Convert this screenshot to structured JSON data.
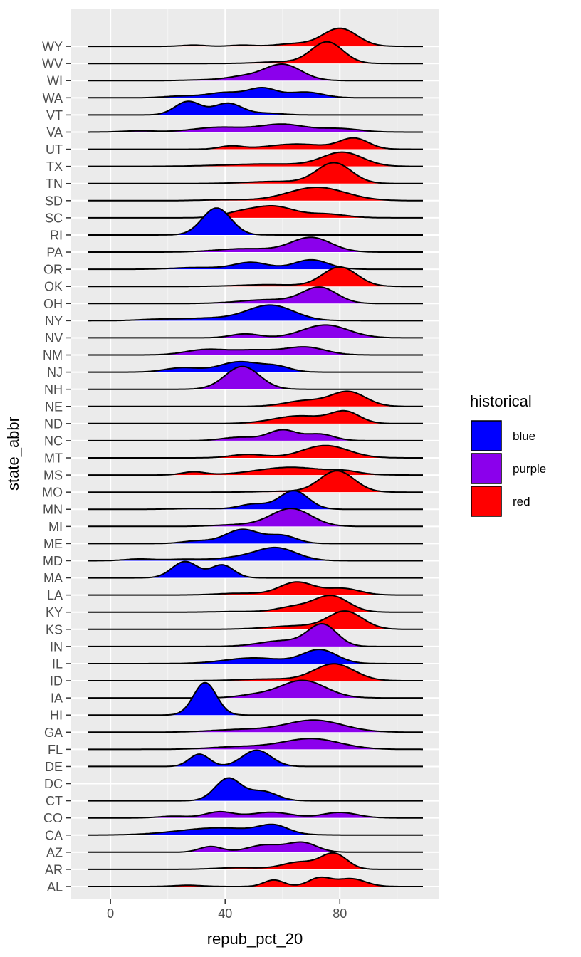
{
  "chart_data": {
    "type": "ridgeline",
    "xlabel": "repub_pct_20",
    "ylabel": "state_abbr",
    "xlim": [
      -13.7,
      114.7
    ],
    "x_ticks": [
      0,
      40,
      80
    ],
    "x_tick_labels": [
      "0",
      "40",
      "80"
    ],
    "grid": true,
    "legend": {
      "title": "historical",
      "position": "right",
      "entries": [
        {
          "label": "blue",
          "color": "#0000FF"
        },
        {
          "label": "purple",
          "color": "#8B00EC"
        },
        {
          "label": "red",
          "color": "#FF0000"
        }
      ]
    },
    "density_note_units": "approximate density components [center repub_pct_20, sd, relative height]",
    "states": [
      {
        "state": "WY",
        "group": "red",
        "components": [
          [
            80,
            6,
            1.05
          ],
          [
            29,
            4,
            0.07
          ],
          [
            46,
            4,
            0.07
          ],
          [
            64,
            6,
            0.15
          ]
        ]
      },
      {
        "state": "WV",
        "group": "red",
        "components": [
          [
            75.6,
            5.5,
            1.25
          ],
          [
            60,
            8,
            0.1
          ]
        ]
      },
      {
        "state": "WI",
        "group": "purple",
        "components": [
          [
            60,
            6.5,
            0.95
          ],
          [
            46,
            6,
            0.22
          ],
          [
            32,
            6,
            0.04
          ]
        ]
      },
      {
        "state": "WA",
        "group": "blue",
        "components": [
          [
            53,
            5,
            0.55
          ],
          [
            40,
            6,
            0.3
          ],
          [
            68,
            6,
            0.33
          ],
          [
            25,
            6,
            0.1
          ]
        ]
      },
      {
        "state": "VT",
        "group": "blue",
        "components": [
          [
            27,
            4.5,
            0.78
          ],
          [
            41,
            5,
            0.68
          ],
          [
            55,
            5,
            0.1
          ]
        ]
      },
      {
        "state": "VA",
        "group": "purple",
        "components": [
          [
            60,
            8,
            0.45
          ],
          [
            38,
            9,
            0.28
          ],
          [
            80,
            7,
            0.2
          ],
          [
            10,
            6,
            0.07
          ]
        ]
      },
      {
        "state": "UT",
        "group": "red",
        "components": [
          [
            85,
            5,
            0.62
          ],
          [
            65,
            10,
            0.3
          ],
          [
            42,
            4,
            0.18
          ]
        ]
      },
      {
        "state": "TX",
        "group": "red",
        "components": [
          [
            81,
            7,
            0.8
          ],
          [
            55,
            15,
            0.14
          ]
        ]
      },
      {
        "state": "TN",
        "group": "red",
        "components": [
          [
            78,
            6,
            1.2
          ],
          [
            58,
            10,
            0.12
          ]
        ]
      },
      {
        "state": "SD",
        "group": "red",
        "components": [
          [
            72,
            10,
            0.78
          ],
          [
            40,
            8,
            0.05
          ]
        ]
      },
      {
        "state": "SC",
        "group": "red",
        "components": [
          [
            57,
            7,
            0.65
          ],
          [
            45,
            6,
            0.28
          ],
          [
            75,
            7,
            0.22
          ]
        ]
      },
      {
        "state": "RI",
        "group": "blue",
        "components": [
          [
            37,
            5,
            1.57
          ]
        ]
      },
      {
        "state": "PA",
        "group": "purple",
        "components": [
          [
            70,
            7,
            0.85
          ],
          [
            47,
            10,
            0.2
          ]
        ]
      },
      {
        "state": "OR",
        "group": "blue",
        "components": [
          [
            49,
            6,
            0.4
          ],
          [
            70,
            6,
            0.55
          ],
          [
            30,
            8,
            0.1
          ]
        ]
      },
      {
        "state": "OK",
        "group": "red",
        "components": [
          [
            80,
            6,
            1.13
          ],
          [
            55,
            10,
            0.1
          ]
        ]
      },
      {
        "state": "OH",
        "group": "purple",
        "components": [
          [
            73,
            6,
            0.92
          ],
          [
            55,
            10,
            0.22
          ]
        ]
      },
      {
        "state": "NY",
        "group": "blue",
        "components": [
          [
            56,
            8,
            0.88
          ],
          [
            35,
            12,
            0.15
          ],
          [
            15,
            6,
            0.05
          ]
        ]
      },
      {
        "state": "NV",
        "group": "purple",
        "components": [
          [
            75,
            8,
            0.75
          ],
          [
            47,
            5,
            0.23
          ]
        ]
      },
      {
        "state": "NM",
        "group": "purple",
        "components": [
          [
            68,
            7,
            0.45
          ],
          [
            33,
            7,
            0.3
          ],
          [
            50,
            8,
            0.28
          ]
        ]
      },
      {
        "state": "NJ",
        "group": "blue",
        "components": [
          [
            45,
            7,
            0.6
          ],
          [
            25,
            6,
            0.25
          ],
          [
            58,
            5,
            0.3
          ]
        ]
      },
      {
        "state": "NH",
        "group": "purple",
        "components": [
          [
            46,
            6,
            1.33
          ]
        ]
      },
      {
        "state": "NE",
        "group": "red",
        "components": [
          [
            83,
            6,
            0.85
          ],
          [
            68,
            7,
            0.33
          ]
        ]
      },
      {
        "state": "ND",
        "group": "red",
        "components": [
          [
            82,
            5,
            0.65
          ],
          [
            66,
            9,
            0.45
          ]
        ]
      },
      {
        "state": "NC",
        "group": "purple",
        "components": [
          [
            60,
            5,
            0.62
          ],
          [
            73,
            5,
            0.38
          ],
          [
            45,
            6,
            0.2
          ]
        ]
      },
      {
        "state": "MT",
        "group": "red",
        "components": [
          [
            75,
            8,
            0.72
          ],
          [
            48,
            6,
            0.2
          ]
        ]
      },
      {
        "state": "MS",
        "group": "red",
        "components": [
          [
            63,
            12,
            0.45
          ],
          [
            29,
            4,
            0.18
          ],
          [
            82,
            5,
            0.15
          ]
        ]
      },
      {
        "state": "MO",
        "group": "red",
        "components": [
          [
            79,
            6,
            1.24
          ],
          [
            60,
            8,
            0.05
          ]
        ]
      },
      {
        "state": "MN",
        "group": "blue",
        "components": [
          [
            64,
            5,
            1.08
          ],
          [
            50,
            5,
            0.3
          ],
          [
            30,
            8,
            0.04
          ]
        ]
      },
      {
        "state": "MI",
        "group": "purple",
        "components": [
          [
            63,
            7,
            1.04
          ],
          [
            45,
            8,
            0.1
          ]
        ]
      },
      {
        "state": "ME",
        "group": "blue",
        "components": [
          [
            46,
            6,
            0.82
          ],
          [
            60,
            5,
            0.45
          ],
          [
            30,
            5,
            0.15
          ]
        ]
      },
      {
        "state": "MD",
        "group": "blue",
        "components": [
          [
            58,
            7,
            0.72
          ],
          [
            45,
            8,
            0.18
          ],
          [
            10,
            5,
            0.1
          ],
          [
            25,
            6,
            0.08
          ]
        ]
      },
      {
        "state": "MA",
        "group": "blue",
        "components": [
          [
            26,
            4.5,
            0.95
          ],
          [
            39,
            4,
            0.75
          ]
        ]
      },
      {
        "state": "LA",
        "group": "red",
        "components": [
          [
            65,
            6,
            0.75
          ],
          [
            81,
            6,
            0.38
          ],
          [
            45,
            8,
            0.1
          ]
        ]
      },
      {
        "state": "KY",
        "group": "red",
        "components": [
          [
            77,
            6,
            0.95
          ],
          [
            64,
            6,
            0.3
          ],
          [
            45,
            8,
            0.04
          ]
        ]
      },
      {
        "state": "KS",
        "group": "red",
        "components": [
          [
            82,
            6,
            1.02
          ],
          [
            65,
            10,
            0.2
          ]
        ]
      },
      {
        "state": "IN",
        "group": "purple",
        "components": [
          [
            74,
            5,
            1.25
          ],
          [
            60,
            8,
            0.33
          ]
        ]
      },
      {
        "state": "IL",
        "group": "blue",
        "components": [
          [
            73,
            6,
            0.8
          ],
          [
            50,
            10,
            0.33
          ]
        ]
      },
      {
        "state": "ID",
        "group": "red",
        "components": [
          [
            78,
            7,
            0.98
          ],
          [
            55,
            10,
            0.1
          ]
        ]
      },
      {
        "state": "IA",
        "group": "purple",
        "components": [
          [
            67,
            8,
            1.02
          ],
          [
            50,
            6,
            0.15
          ]
        ]
      },
      {
        "state": "HI",
        "group": "blue",
        "components": [
          [
            33,
            4,
            1.89
          ]
        ]
      },
      {
        "state": "GA",
        "group": "purple",
        "components": [
          [
            71,
            10,
            0.7
          ],
          [
            45,
            10,
            0.15
          ]
        ]
      },
      {
        "state": "FL",
        "group": "purple",
        "components": [
          [
            70,
            10,
            0.62
          ],
          [
            45,
            10,
            0.15
          ]
        ]
      },
      {
        "state": "DE",
        "group": "blue",
        "components": [
          [
            31,
            3.5,
            0.72
          ],
          [
            51,
            5,
            0.95
          ]
        ]
      },
      {
        "state": "DC",
        "group": "blue",
        "components": []
      },
      {
        "state": "CT",
        "group": "blue",
        "components": [
          [
            41,
            4.5,
            1.3
          ],
          [
            53,
            5,
            0.55
          ]
        ]
      },
      {
        "state": "CO",
        "group": "purple",
        "components": [
          [
            38,
            5,
            0.35
          ],
          [
            56,
            7,
            0.33
          ],
          [
            80,
            6,
            0.32
          ],
          [
            22,
            5,
            0.1
          ]
        ]
      },
      {
        "state": "CA",
        "group": "blue",
        "components": [
          [
            57,
            5,
            0.45
          ],
          [
            38,
            14,
            0.42
          ]
        ]
      },
      {
        "state": "AZ",
        "group": "purple",
        "components": [
          [
            67,
            5,
            0.55
          ],
          [
            35,
            4,
            0.33
          ],
          [
            54,
            6,
            0.42
          ]
        ]
      },
      {
        "state": "AR",
        "group": "red",
        "components": [
          [
            78,
            4.5,
            0.9
          ],
          [
            66,
            6,
            0.42
          ],
          [
            45,
            8,
            0.1
          ]
        ]
      },
      {
        "state": "AL",
        "group": "red",
        "components": [
          [
            73,
            4,
            0.5
          ],
          [
            84,
            5,
            0.45
          ],
          [
            57,
            3.5,
            0.38
          ],
          [
            27,
            5,
            0.07
          ]
        ]
      }
    ]
  }
}
